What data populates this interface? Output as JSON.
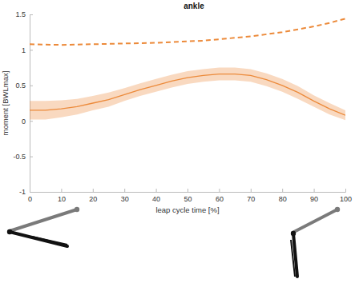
{
  "chart_data": {
    "type": "line",
    "title": "ankle",
    "x_label": "leap cycle time [%]",
    "y_label": "moment [BWLmax]",
    "x": [
      0,
      5,
      10,
      15,
      20,
      25,
      30,
      35,
      40,
      45,
      50,
      55,
      60,
      65,
      70,
      75,
      80,
      85,
      90,
      95,
      100
    ],
    "xlim": [
      0,
      100
    ],
    "xticks": [
      0,
      10,
      20,
      30,
      40,
      50,
      60,
      70,
      80,
      90,
      100
    ],
    "ylim": [
      -1,
      1.5
    ],
    "yticks": [
      -1,
      -0.5,
      0,
      0.5,
      1,
      1.5
    ],
    "grid": false,
    "series": [
      {
        "color": "#ec8a3a",
        "line_style": "solid",
        "values": [
          0.15,
          0.15,
          0.17,
          0.2,
          0.25,
          0.3,
          0.37,
          0.44,
          0.5,
          0.56,
          0.61,
          0.64,
          0.66,
          0.66,
          0.64,
          0.58,
          0.5,
          0.4,
          0.28,
          0.17,
          0.08
        ],
        "sd": [
          0.13,
          0.13,
          0.12,
          0.11,
          0.1,
          0.1,
          0.09,
          0.09,
          0.09,
          0.09,
          0.09,
          0.09,
          0.09,
          0.09,
          0.09,
          0.09,
          0.09,
          0.09,
          0.08,
          0.08,
          0.07
        ]
      },
      {
        "color": "#ec8a3a",
        "line_style": "dashed",
        "values": [
          1.08,
          1.075,
          1.07,
          1.075,
          1.08,
          1.085,
          1.09,
          1.095,
          1.1,
          1.11,
          1.12,
          1.13,
          1.15,
          1.17,
          1.19,
          1.22,
          1.25,
          1.29,
          1.33,
          1.38,
          1.44
        ]
      }
    ]
  }
}
